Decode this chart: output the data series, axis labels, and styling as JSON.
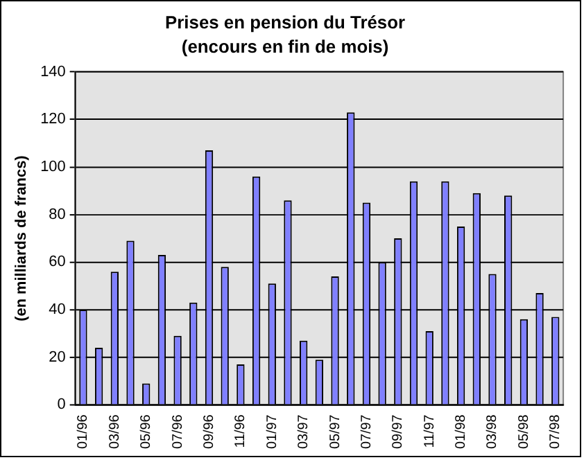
{
  "chart_data": {
    "type": "bar",
    "title": "Prises en pension du Trésor",
    "subtitle": "(encours en fin de mois)",
    "ylabel": "(en milliards de francs)",
    "categories": [
      "01/96",
      null,
      "03/96",
      null,
      "05/96",
      null,
      "07/96",
      null,
      "09/96",
      null,
      "11/96",
      null,
      "01/97",
      null,
      "03/97",
      null,
      "05/97",
      null,
      "07/97",
      null,
      "09/97",
      null,
      "11/97",
      null,
      "01/98",
      null,
      "03/98",
      null,
      "05/98",
      null,
      "07/98"
    ],
    "values": [
      40,
      24,
      56,
      69,
      9,
      63,
      29,
      43,
      107,
      58,
      17,
      96,
      51,
      86,
      27,
      19,
      54,
      123,
      85,
      60,
      70,
      94,
      31,
      94,
      75,
      89,
      55,
      88,
      36,
      47,
      37
    ],
    "color": "#8080ff",
    "ylim": [
      0,
      140
    ],
    "yticks": [
      0,
      20,
      40,
      60,
      80,
      100,
      120,
      140
    ],
    "grid": "y"
  }
}
